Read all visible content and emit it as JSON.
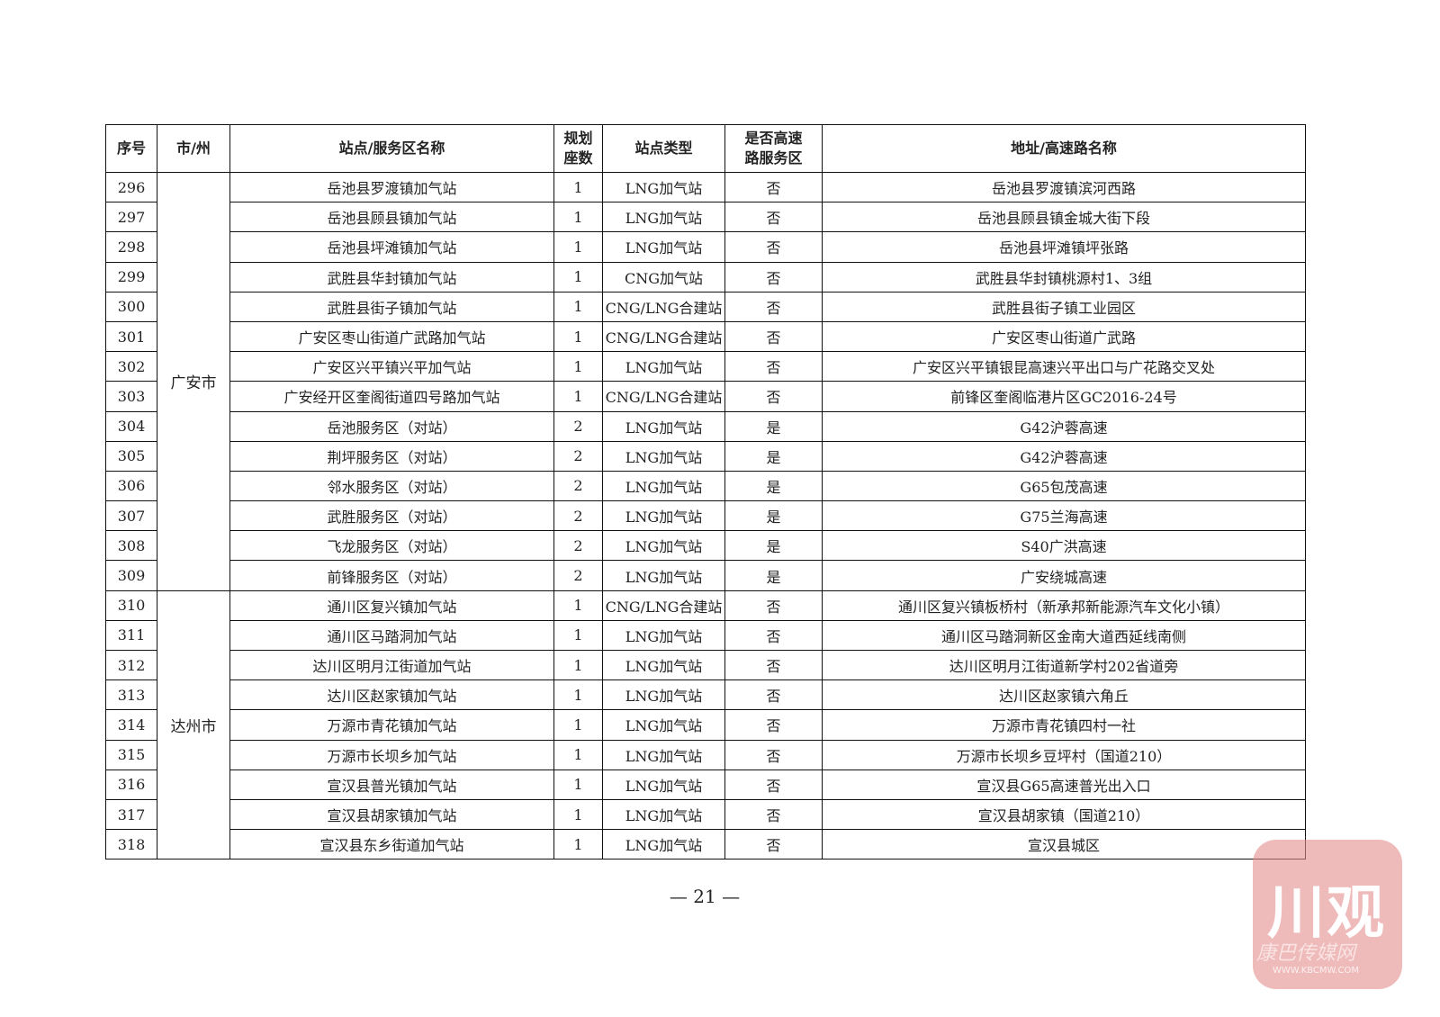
{
  "headers": [
    "序号",
    "市/州",
    "站点/服务区名称",
    "规划座数",
    "站点类型",
    "是否高速路服务区",
    "地址/高速路名称"
  ],
  "header_lines": {
    "seats": [
      "规划",
      "座数"
    ],
    "highway": [
      "是否高速",
      "路服务区"
    ]
  },
  "groups": [
    {
      "city": "广安市",
      "rows": [
        [
          "296",
          "岳池县罗渡镇加气站",
          "1",
          "LNG加气站",
          "否",
          "岳池县罗渡镇滨河西路"
        ],
        [
          "297",
          "岳池县顾县镇加气站",
          "1",
          "LNG加气站",
          "否",
          "岳池县顾县镇金城大街下段"
        ],
        [
          "298",
          "岳池县坪滩镇加气站",
          "1",
          "LNG加气站",
          "否",
          "岳池县坪滩镇坪张路"
        ],
        [
          "299",
          "武胜县华封镇加气站",
          "1",
          "CNG加气站",
          "否",
          "武胜县华封镇桃源村1、3组"
        ],
        [
          "300",
          "武胜县街子镇加气站",
          "1",
          "CNG/LNG合建站",
          "否",
          "武胜县街子镇工业园区"
        ],
        [
          "301",
          "广安区枣山街道广武路加气站",
          "1",
          "CNG/LNG合建站",
          "否",
          "广安区枣山街道广武路"
        ],
        [
          "302",
          "广安区兴平镇兴平加气站",
          "1",
          "LNG加气站",
          "否",
          "广安区兴平镇银昆高速兴平出口与广花路交叉处"
        ],
        [
          "303",
          "广安经开区奎阁街道四号路加气站",
          "1",
          "CNG/LNG合建站",
          "否",
          "前锋区奎阁临港片区GC2016-24号"
        ],
        [
          "304",
          "岳池服务区（对站）",
          "2",
          "LNG加气站",
          "是",
          "G42沪蓉高速"
        ],
        [
          "305",
          "荆坪服务区（对站）",
          "2",
          "LNG加气站",
          "是",
          "G42沪蓉高速"
        ],
        [
          "306",
          "邻水服务区（对站）",
          "2",
          "LNG加气站",
          "是",
          "G65包茂高速"
        ],
        [
          "307",
          "武胜服务区（对站）",
          "2",
          "LNG加气站",
          "是",
          "G75兰海高速"
        ],
        [
          "308",
          "飞龙服务区（对站）",
          "2",
          "LNG加气站",
          "是",
          "S40广洪高速"
        ],
        [
          "309",
          "前锋服务区（对站）",
          "2",
          "LNG加气站",
          "是",
          "广安绕城高速"
        ]
      ]
    },
    {
      "city": "达州市",
      "rows": [
        [
          "310",
          "通川区复兴镇加气站",
          "1",
          "CNG/LNG合建站",
          "否",
          "通川区复兴镇板桥村（新承邦新能源汽车文化小镇）"
        ],
        [
          "311",
          "通川区马踏洞加气站",
          "1",
          "LNG加气站",
          "否",
          "通川区马踏洞新区金南大道西延线南侧"
        ],
        [
          "312",
          "达川区明月江街道加气站",
          "1",
          "LNG加气站",
          "否",
          "达川区明月江街道新学村202省道旁"
        ],
        [
          "313",
          "达川区赵家镇加气站",
          "1",
          "LNG加气站",
          "否",
          "达川区赵家镇六角丘"
        ],
        [
          "314",
          "万源市青花镇加气站",
          "1",
          "LNG加气站",
          "否",
          "万源市青花镇四村一社"
        ],
        [
          "315",
          "万源市长坝乡加气站",
          "1",
          "LNG加气站",
          "否",
          "万源市长坝乡豆坪村（国道210）"
        ],
        [
          "316",
          "宣汉县普光镇加气站",
          "1",
          "LNG加气站",
          "否",
          "宣汉县G65高速普光出入口"
        ],
        [
          "317",
          "宣汉县胡家镇加气站",
          "1",
          "LNG加气站",
          "否",
          "宣汉县胡家镇（国道210）"
        ],
        [
          "318",
          "宣汉县东乡街道加气站",
          "1",
          "LNG加气站",
          "否",
          "宣汉县城区"
        ]
      ]
    }
  ],
  "page_number": "— 21 —",
  "watermark": {
    "logo": "川观",
    "name": "康巴传媒网",
    "url": "WWW.KBCMW.COM",
    "color": "#e48c8c"
  }
}
